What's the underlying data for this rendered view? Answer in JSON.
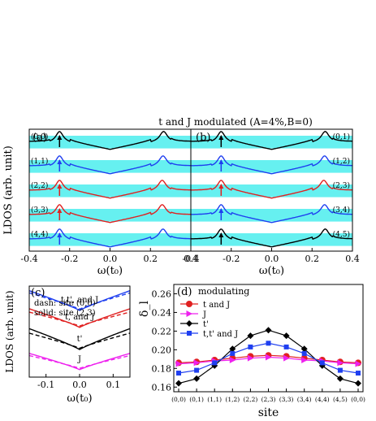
{
  "figure": {
    "title": "t and J modulated (A=4%,B=0)"
  },
  "colors": {
    "band": "#66f0f0",
    "black": "#000000",
    "blue": "#1f3ff0",
    "red": "#e02020",
    "magenta": "#ee20ee"
  },
  "chart_data": [
    {
      "type": "line",
      "panel_label": "(a)",
      "xlabel": "ω(t₀)",
      "ylabel": "LDOS (arb. unit)",
      "xlim": [
        -0.4,
        0.4
      ],
      "x_ticks": [
        -0.4,
        -0.2,
        0.0,
        0.2,
        0.4
      ],
      "x_tick_labels": [
        "-0.4",
        "-0.2",
        "0.0",
        "0.2",
        "0.4"
      ],
      "series": [
        {
          "name": "(0,0)",
          "color": "#000000",
          "peak_left": -0.25,
          "peak_right": 0.265
        },
        {
          "name": "(1,1)",
          "color": "#1f3ff0",
          "peak_left": -0.25,
          "peak_right": 0.262
        },
        {
          "name": "(2,2)",
          "color": "#e02020",
          "peak_left": -0.25,
          "peak_right": 0.258
        },
        {
          "name": "(3,3)",
          "color": "#e02020",
          "peak_left": -0.25,
          "peak_right": 0.258
        },
        {
          "name": "(4,4)",
          "color": "#1f3ff0",
          "peak_left": -0.25,
          "peak_right": 0.262
        }
      ]
    },
    {
      "type": "line",
      "panel_label": "(b)",
      "xlabel": "ω(t₀)",
      "xlim": [
        -0.4,
        0.4
      ],
      "x_ticks": [
        -0.4,
        -0.2,
        0.0,
        0.2,
        0.4
      ],
      "x_tick_labels": [
        "-0.4",
        "-0.2",
        "0.0",
        "0.2",
        "0.4"
      ],
      "series": [
        {
          "name": "(0,1)",
          "color": "#000000",
          "peak_left": -0.25,
          "peak_right": 0.265
        },
        {
          "name": "(1,2)",
          "color": "#1f3ff0",
          "peak_left": -0.25,
          "peak_right": 0.262
        },
        {
          "name": "(2,3)",
          "color": "#e02020",
          "peak_left": -0.25,
          "peak_right": 0.258
        },
        {
          "name": "(3,4)",
          "color": "#1f3ff0",
          "peak_left": -0.25,
          "peak_right": 0.262
        },
        {
          "name": "(4,5)",
          "color": "#000000",
          "peak_left": -0.25,
          "peak_right": 0.265
        }
      ]
    },
    {
      "type": "line",
      "panel_label": "(c)",
      "xlabel": "ω(t₀)",
      "ylabel": "LDOS (arb. unit)",
      "xlim": [
        -0.15,
        0.15
      ],
      "x_ticks": [
        -0.1,
        0.0,
        0.1
      ],
      "x_tick_labels": [
        "-0.1",
        "0.0",
        "0.1"
      ],
      "annotations": [
        "dash: site (0,0)",
        "solid: site (2,3)"
      ],
      "series": [
        {
          "name": "t,t', and J",
          "color": "#1f3ff0",
          "offset": 3.0,
          "slope_solid": 0.85,
          "slope_dash": 0.7
        },
        {
          "name": "t, and J",
          "color": "#e02020",
          "offset": 2.2,
          "slope_solid": 0.8,
          "slope_dash": 0.6
        },
        {
          "name": "t'",
          "color": "#000000",
          "offset": 1.15,
          "slope_solid": 0.9,
          "slope_dash": 0.65
        },
        {
          "name": "J",
          "color": "#ee20ee",
          "offset": 0.2,
          "slope_solid": 0.7,
          "slope_dash": 0.55
        }
      ]
    },
    {
      "type": "line",
      "panel_label": "(d)",
      "xlabel": "site",
      "ylabel": "δ_l",
      "ylim": [
        0.155,
        0.27
      ],
      "y_ticks": [
        0.16,
        0.18,
        0.2,
        0.22,
        0.24,
        0.26
      ],
      "y_tick_labels": [
        "0.16",
        "0.18",
        "0.20",
        "0.22",
        "0.24",
        "0.26"
      ],
      "categories": [
        "(0,0)",
        "(0,1)",
        "(1,1)",
        "(1,2)",
        "(2,2)",
        "(2,3)",
        "(3,3)",
        "(3,4)",
        "(4,4)",
        "(4,5)",
        "(0,0)"
      ],
      "legend_title": "modulating",
      "legend_position": "top-left",
      "series": [
        {
          "name": "t and J",
          "color": "#e02020",
          "marker": "circle",
          "values": [
            0.186,
            0.187,
            0.189,
            0.191,
            0.193,
            0.194,
            0.193,
            0.191,
            0.189,
            0.187,
            0.186
          ]
        },
        {
          "name": "J",
          "color": "#ee20ee",
          "marker": "triangle-right",
          "values": [
            0.185,
            0.186,
            0.188,
            0.189,
            0.191,
            0.192,
            0.191,
            0.189,
            0.188,
            0.186,
            0.185
          ]
        },
        {
          "name": "t'",
          "color": "#000000",
          "marker": "diamond",
          "values": [
            0.164,
            0.169,
            0.183,
            0.201,
            0.215,
            0.221,
            0.215,
            0.201,
            0.183,
            0.169,
            0.164
          ]
        },
        {
          "name": "t,t' and J",
          "color": "#1f3ff0",
          "marker": "square",
          "values": [
            0.175,
            0.178,
            0.186,
            0.196,
            0.203,
            0.207,
            0.203,
            0.196,
            0.186,
            0.178,
            0.175
          ]
        }
      ]
    }
  ]
}
